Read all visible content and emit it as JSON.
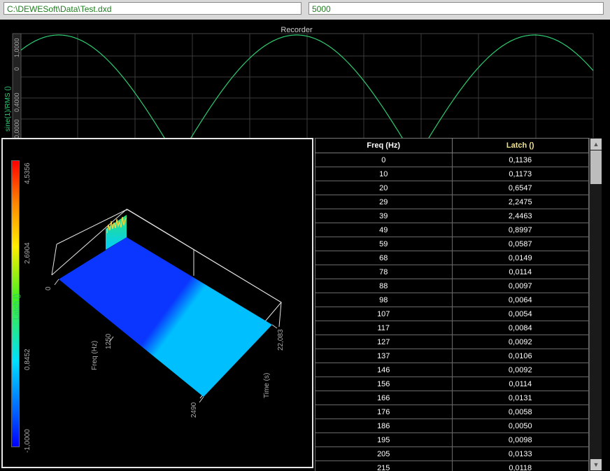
{
  "fields": {
    "file_path": "C:\\DEWESoft\\Data\\Test.dxd",
    "value": "5000"
  },
  "recorder": {
    "title": "Recorder",
    "y_label": "sine(1)/RMS ()",
    "y_ticks": [
      "1,0000",
      "0",
      "0,4000",
      "0,0000"
    ]
  },
  "plot3d": {
    "colorbar_ticks": [
      "4,5356",
      "2,6904",
      "0,8452",
      "-1,0000"
    ],
    "colorbar_label": "Latch ()",
    "freq_axis_label": "Freq (Hz)",
    "freq_ticks": [
      "0",
      "1250",
      "2490"
    ],
    "time_axis_label": "Time (s)",
    "time_ticks": [
      "22,083"
    ]
  },
  "table": {
    "headers": [
      "Freq (Hz)",
      "Latch ()"
    ],
    "rows": [
      [
        "0",
        "0,1136"
      ],
      [
        "10",
        "0,1173"
      ],
      [
        "20",
        "0,6547"
      ],
      [
        "29",
        "2,2475"
      ],
      [
        "39",
        "2,4463"
      ],
      [
        "49",
        "0,8997"
      ],
      [
        "59",
        "0,0587"
      ],
      [
        "68",
        "0,0149"
      ],
      [
        "78",
        "0,0114"
      ],
      [
        "88",
        "0,0097"
      ],
      [
        "98",
        "0,0064"
      ],
      [
        "107",
        "0,0054"
      ],
      [
        "117",
        "0,0084"
      ],
      [
        "127",
        "0,0092"
      ],
      [
        "137",
        "0,0106"
      ],
      [
        "146",
        "0,0092"
      ],
      [
        "156",
        "0,0114"
      ],
      [
        "166",
        "0,0131"
      ],
      [
        "176",
        "0,0058"
      ],
      [
        "186",
        "0,0050"
      ],
      [
        "195",
        "0,0098"
      ],
      [
        "205",
        "0,0133"
      ],
      [
        "215",
        "0,0118"
      ]
    ]
  },
  "scrollbar": {
    "up_icon": "arrow-up-icon",
    "down_icon": "arrow-down-icon"
  },
  "colors": {
    "trace": "#2ecc71",
    "field_text": "#1e7d1e",
    "latch_header": "#f0e38c"
  }
}
